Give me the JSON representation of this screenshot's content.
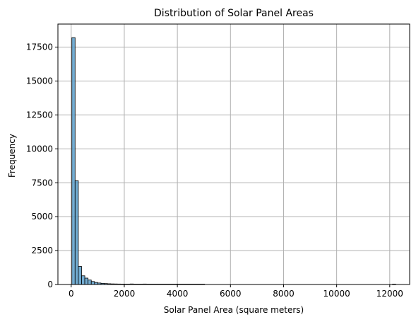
{
  "chart_data": {
    "type": "bar",
    "title": "Distribution of Solar Panel Areas",
    "xlabel": "Solar Panel Area (square meters)",
    "ylabel": "Frequency",
    "xlim": [
      -500,
      12750
    ],
    "ylim": [
      0,
      19200
    ],
    "xticks": [
      0,
      2000,
      4000,
      6000,
      8000,
      10000,
      12000
    ],
    "yticks": [
      0,
      2500,
      5000,
      7500,
      10000,
      12500,
      15000,
      17500
    ],
    "grid": true,
    "bar_color": "#5b9ec9",
    "bar_edge_color": "#000000",
    "bins": {
      "start": 25,
      "width": 122,
      "counts": [
        18200,
        7650,
        1330,
        640,
        470,
        330,
        220,
        150,
        110,
        85,
        70,
        55,
        45,
        40,
        35,
        30,
        25,
        20,
        40,
        30,
        20,
        15,
        35,
        15,
        10,
        8,
        6,
        5,
        4,
        3,
        3,
        2,
        2,
        2,
        1,
        1,
        1,
        1,
        1,
        1,
        1,
        0,
        0,
        0,
        0,
        0,
        0,
        0,
        0,
        0,
        0,
        0,
        0,
        0,
        0,
        0,
        0,
        0,
        0,
        0,
        0,
        0,
        0,
        0,
        0,
        0,
        0,
        0,
        0,
        0,
        0,
        0,
        0,
        0,
        0,
        0,
        0,
        0,
        0,
        0,
        0,
        0,
        0,
        0,
        0,
        0,
        0,
        0,
        0,
        0,
        0,
        0,
        0,
        0,
        0,
        0,
        0,
        0,
        0,
        1
      ]
    }
  }
}
